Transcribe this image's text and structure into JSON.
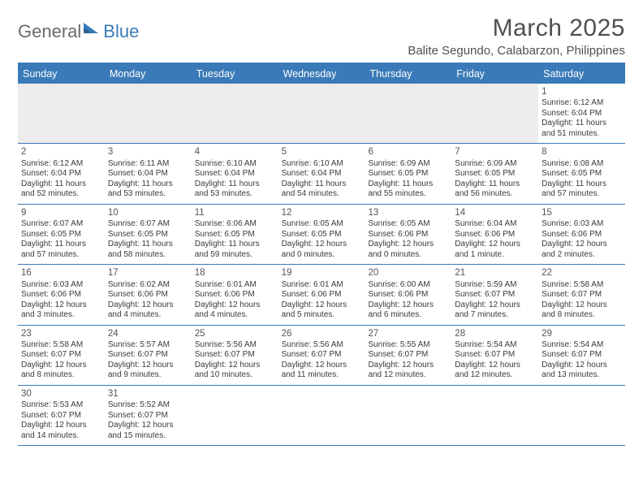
{
  "logo": {
    "textA": "General",
    "textB": "Blue"
  },
  "title": {
    "monthYear": "March 2025",
    "location": "Balite Segundo, Calabarzon, Philippines"
  },
  "dow": [
    "Sunday",
    "Monday",
    "Tuesday",
    "Wednesday",
    "Thursday",
    "Friday",
    "Saturday"
  ],
  "colors": {
    "accent": "#3a7ab8",
    "headerText": "#ffffff",
    "emptyCell": "#ededed",
    "bodyText": "#3a3a3a",
    "titleText": "#505050"
  },
  "weeks": [
    [
      {
        "empty": true
      },
      {
        "empty": true
      },
      {
        "empty": true
      },
      {
        "empty": true
      },
      {
        "empty": true
      },
      {
        "empty": true
      },
      {
        "num": "1",
        "sunrise": "Sunrise: 6:12 AM",
        "sunset": "Sunset: 6:04 PM",
        "daylight": "Daylight: 11 hours and 51 minutes."
      }
    ],
    [
      {
        "num": "2",
        "sunrise": "Sunrise: 6:12 AM",
        "sunset": "Sunset: 6:04 PM",
        "daylight": "Daylight: 11 hours and 52 minutes."
      },
      {
        "num": "3",
        "sunrise": "Sunrise: 6:11 AM",
        "sunset": "Sunset: 6:04 PM",
        "daylight": "Daylight: 11 hours and 53 minutes."
      },
      {
        "num": "4",
        "sunrise": "Sunrise: 6:10 AM",
        "sunset": "Sunset: 6:04 PM",
        "daylight": "Daylight: 11 hours and 53 minutes."
      },
      {
        "num": "5",
        "sunrise": "Sunrise: 6:10 AM",
        "sunset": "Sunset: 6:04 PM",
        "daylight": "Daylight: 11 hours and 54 minutes."
      },
      {
        "num": "6",
        "sunrise": "Sunrise: 6:09 AM",
        "sunset": "Sunset: 6:05 PM",
        "daylight": "Daylight: 11 hours and 55 minutes."
      },
      {
        "num": "7",
        "sunrise": "Sunrise: 6:09 AM",
        "sunset": "Sunset: 6:05 PM",
        "daylight": "Daylight: 11 hours and 56 minutes."
      },
      {
        "num": "8",
        "sunrise": "Sunrise: 6:08 AM",
        "sunset": "Sunset: 6:05 PM",
        "daylight": "Daylight: 11 hours and 57 minutes."
      }
    ],
    [
      {
        "num": "9",
        "sunrise": "Sunrise: 6:07 AM",
        "sunset": "Sunset: 6:05 PM",
        "daylight": "Daylight: 11 hours and 57 minutes."
      },
      {
        "num": "10",
        "sunrise": "Sunrise: 6:07 AM",
        "sunset": "Sunset: 6:05 PM",
        "daylight": "Daylight: 11 hours and 58 minutes."
      },
      {
        "num": "11",
        "sunrise": "Sunrise: 6:06 AM",
        "sunset": "Sunset: 6:05 PM",
        "daylight": "Daylight: 11 hours and 59 minutes."
      },
      {
        "num": "12",
        "sunrise": "Sunrise: 6:05 AM",
        "sunset": "Sunset: 6:05 PM",
        "daylight": "Daylight: 12 hours and 0 minutes."
      },
      {
        "num": "13",
        "sunrise": "Sunrise: 6:05 AM",
        "sunset": "Sunset: 6:06 PM",
        "daylight": "Daylight: 12 hours and 0 minutes."
      },
      {
        "num": "14",
        "sunrise": "Sunrise: 6:04 AM",
        "sunset": "Sunset: 6:06 PM",
        "daylight": "Daylight: 12 hours and 1 minute."
      },
      {
        "num": "15",
        "sunrise": "Sunrise: 6:03 AM",
        "sunset": "Sunset: 6:06 PM",
        "daylight": "Daylight: 12 hours and 2 minutes."
      }
    ],
    [
      {
        "num": "16",
        "sunrise": "Sunrise: 6:03 AM",
        "sunset": "Sunset: 6:06 PM",
        "daylight": "Daylight: 12 hours and 3 minutes."
      },
      {
        "num": "17",
        "sunrise": "Sunrise: 6:02 AM",
        "sunset": "Sunset: 6:06 PM",
        "daylight": "Daylight: 12 hours and 4 minutes."
      },
      {
        "num": "18",
        "sunrise": "Sunrise: 6:01 AM",
        "sunset": "Sunset: 6:06 PM",
        "daylight": "Daylight: 12 hours and 4 minutes."
      },
      {
        "num": "19",
        "sunrise": "Sunrise: 6:01 AM",
        "sunset": "Sunset: 6:06 PM",
        "daylight": "Daylight: 12 hours and 5 minutes."
      },
      {
        "num": "20",
        "sunrise": "Sunrise: 6:00 AM",
        "sunset": "Sunset: 6:06 PM",
        "daylight": "Daylight: 12 hours and 6 minutes."
      },
      {
        "num": "21",
        "sunrise": "Sunrise: 5:59 AM",
        "sunset": "Sunset: 6:07 PM",
        "daylight": "Daylight: 12 hours and 7 minutes."
      },
      {
        "num": "22",
        "sunrise": "Sunrise: 5:58 AM",
        "sunset": "Sunset: 6:07 PM",
        "daylight": "Daylight: 12 hours and 8 minutes."
      }
    ],
    [
      {
        "num": "23",
        "sunrise": "Sunrise: 5:58 AM",
        "sunset": "Sunset: 6:07 PM",
        "daylight": "Daylight: 12 hours and 8 minutes."
      },
      {
        "num": "24",
        "sunrise": "Sunrise: 5:57 AM",
        "sunset": "Sunset: 6:07 PM",
        "daylight": "Daylight: 12 hours and 9 minutes."
      },
      {
        "num": "25",
        "sunrise": "Sunrise: 5:56 AM",
        "sunset": "Sunset: 6:07 PM",
        "daylight": "Daylight: 12 hours and 10 minutes."
      },
      {
        "num": "26",
        "sunrise": "Sunrise: 5:56 AM",
        "sunset": "Sunset: 6:07 PM",
        "daylight": "Daylight: 12 hours and 11 minutes."
      },
      {
        "num": "27",
        "sunrise": "Sunrise: 5:55 AM",
        "sunset": "Sunset: 6:07 PM",
        "daylight": "Daylight: 12 hours and 12 minutes."
      },
      {
        "num": "28",
        "sunrise": "Sunrise: 5:54 AM",
        "sunset": "Sunset: 6:07 PM",
        "daylight": "Daylight: 12 hours and 12 minutes."
      },
      {
        "num": "29",
        "sunrise": "Sunrise: 5:54 AM",
        "sunset": "Sunset: 6:07 PM",
        "daylight": "Daylight: 12 hours and 13 minutes."
      }
    ],
    [
      {
        "num": "30",
        "sunrise": "Sunrise: 5:53 AM",
        "sunset": "Sunset: 6:07 PM",
        "daylight": "Daylight: 12 hours and 14 minutes."
      },
      {
        "num": "31",
        "sunrise": "Sunrise: 5:52 AM",
        "sunset": "Sunset: 6:07 PM",
        "daylight": "Daylight: 12 hours and 15 minutes."
      },
      {
        "empty": true
      },
      {
        "empty": true
      },
      {
        "empty": true
      },
      {
        "empty": true
      },
      {
        "empty": true
      }
    ]
  ]
}
